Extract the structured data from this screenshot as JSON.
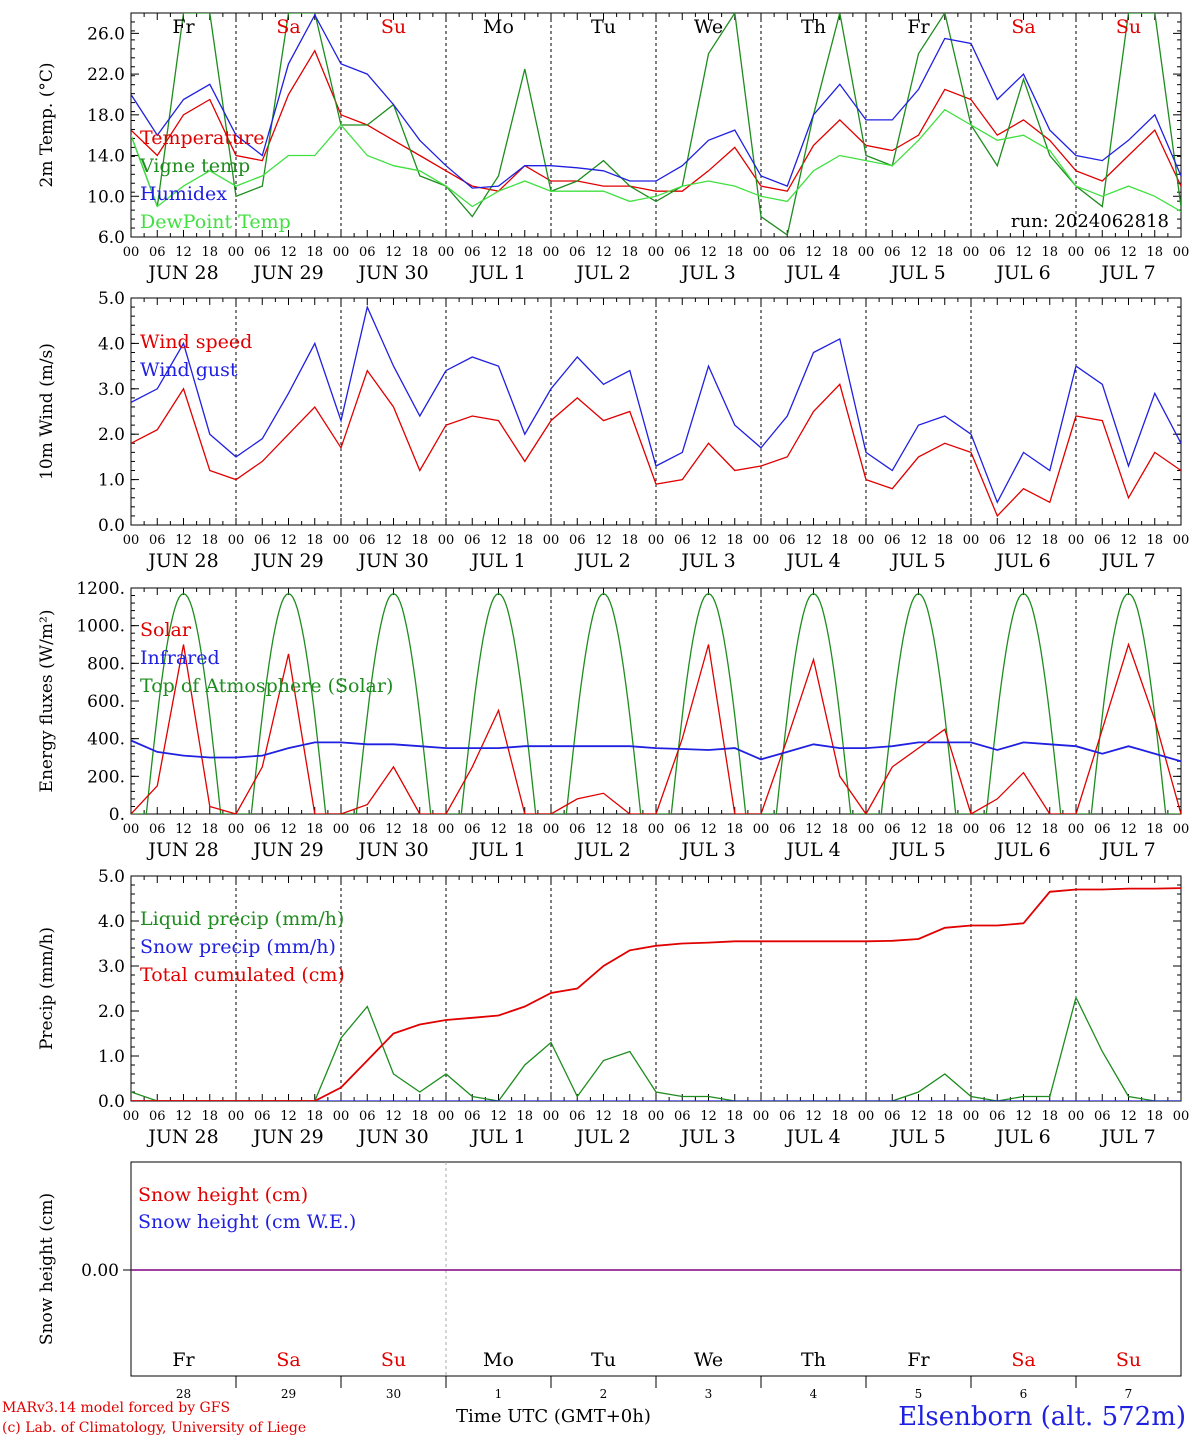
{
  "chart_data": [
    {
      "type": "line",
      "ylabel": "2m Temp. (°C)",
      "ylim": [
        6,
        28
      ],
      "yticks": [
        "6.0",
        "10.0",
        "14.0",
        "18.0",
        "22.0",
        "26.0"
      ],
      "day_names": [
        "Fr",
        "Sa",
        "Su",
        "Mo",
        "Tu",
        "We",
        "Th",
        "Fr",
        "Sa",
        "Su"
      ],
      "day_name_colors": [
        "#000000",
        "#e00000",
        "#e00000",
        "#000000",
        "#000000",
        "#000000",
        "#000000",
        "#000000",
        "#e00000",
        "#e00000"
      ],
      "run_label": "run: 2024062818",
      "x_hours": [
        0,
        6,
        12,
        18,
        24,
        30,
        36,
        42,
        48,
        54,
        60,
        66,
        72,
        78,
        84,
        90,
        96,
        102,
        108,
        114,
        120,
        126,
        132,
        138,
        144,
        150,
        156,
        162,
        168,
        174,
        180,
        186,
        192,
        198,
        204,
        210,
        216,
        222,
        228,
        234,
        240
      ],
      "series": [
        {
          "name": "Temperature",
          "color": "#e00000",
          "values": [
            16.5,
            14,
            18,
            19.5,
            14,
            13.5,
            20,
            24.3,
            18,
            17,
            15.5,
            14,
            12.5,
            11,
            10.5,
            13,
            11.5,
            11.5,
            11,
            11,
            10.5,
            10.5,
            12.5,
            14.8,
            11,
            10.5,
            15,
            17.5,
            15,
            14.5,
            16,
            20.5,
            19.5,
            16,
            17.5,
            15.5,
            12.5,
            11.5,
            14,
            16.5,
            11
          ]
        },
        {
          "name": "Vigne temp",
          "color": "#1e8c1e",
          "values": [
            16,
            9,
            28,
            28,
            10,
            11,
            28,
            28,
            17,
            17,
            19,
            12,
            11,
            8,
            12,
            22.5,
            10.5,
            11.5,
            13.5,
            11,
            9.5,
            11,
            24,
            28,
            8,
            6.2,
            18,
            28,
            14,
            13,
            24,
            28,
            17,
            13,
            21.5,
            14,
            11,
            9,
            28,
            28,
            9
          ]
        },
        {
          "name": "Humidex",
          "color": "#2020e0",
          "values": [
            20,
            16,
            19.5,
            21,
            16,
            14,
            23,
            27.8,
            23,
            22,
            19,
            15.5,
            13,
            10.8,
            11,
            13,
            13,
            12.8,
            12.5,
            11.5,
            11.5,
            13,
            15.5,
            16.5,
            12,
            11,
            18,
            21,
            17.5,
            17.5,
            20.5,
            25.5,
            25,
            19.5,
            22,
            16.5,
            14,
            13.5,
            15.5,
            18,
            12
          ]
        },
        {
          "name": "DewPoint Temp",
          "color": "#40e040",
          "values": [
            16,
            9,
            11,
            12.5,
            11,
            12,
            14,
            14,
            17,
            14,
            13,
            12.5,
            11,
            9,
            10.5,
            11.5,
            10.5,
            10.5,
            10.5,
            9.5,
            10,
            11,
            11.5,
            11,
            10,
            9.5,
            12.5,
            14,
            13.5,
            13,
            15.5,
            18.5,
            17,
            15.5,
            16,
            14.5,
            11,
            10,
            11,
            10,
            8.5
          ]
        }
      ]
    },
    {
      "type": "line",
      "ylabel": "10m Wind (m/s)",
      "ylim": [
        0,
        5
      ],
      "yticks": [
        "0.0",
        "1.0",
        "2.0",
        "3.0",
        "4.0",
        "5.0"
      ],
      "x_hours": [
        0,
        6,
        12,
        18,
        24,
        30,
        36,
        42,
        48,
        54,
        60,
        66,
        72,
        78,
        84,
        90,
        96,
        102,
        108,
        114,
        120,
        126,
        132,
        138,
        144,
        150,
        156,
        162,
        168,
        174,
        180,
        186,
        192,
        198,
        204,
        210,
        216,
        222,
        228,
        234,
        240
      ],
      "series": [
        {
          "name": "Wind speed",
          "color": "#e00000",
          "values": [
            1.8,
            2.1,
            3.0,
            1.2,
            1.0,
            1.4,
            2.0,
            2.6,
            1.7,
            3.4,
            2.6,
            1.2,
            2.2,
            2.4,
            2.3,
            1.4,
            2.3,
            2.8,
            2.3,
            2.5,
            0.9,
            1.0,
            1.8,
            1.2,
            1.3,
            1.5,
            2.5,
            3.1,
            1.0,
            0.8,
            1.5,
            1.8,
            1.6,
            0.2,
            0.8,
            0.5,
            2.4,
            2.3,
            0.6,
            1.6,
            1.2
          ]
        },
        {
          "name": "Wind gust",
          "color": "#2020e0",
          "values": [
            2.7,
            3.0,
            4.0,
            2.0,
            1.5,
            1.9,
            2.9,
            4.0,
            2.3,
            4.8,
            3.5,
            2.4,
            3.4,
            3.7,
            3.5,
            2.0,
            3.0,
            3.7,
            3.1,
            3.4,
            1.3,
            1.6,
            3.5,
            2.2,
            1.7,
            2.4,
            3.8,
            4.1,
            1.6,
            1.2,
            2.2,
            2.4,
            2.0,
            0.5,
            1.6,
            1.2,
            3.5,
            3.1,
            1.3,
            2.9,
            1.8
          ]
        }
      ]
    },
    {
      "type": "line",
      "ylabel": "Energy fluxes (W/m²)",
      "ylim": [
        0,
        1200
      ],
      "yticks": [
        "0.",
        "200.",
        "400.",
        "600.",
        "800.",
        "1000.",
        "1200."
      ],
      "x_hours": [
        0,
        6,
        12,
        18,
        24,
        30,
        36,
        42,
        48,
        54,
        60,
        66,
        72,
        78,
        84,
        90,
        96,
        102,
        108,
        114,
        120,
        126,
        132,
        138,
        144,
        150,
        156,
        162,
        168,
        174,
        180,
        186,
        192,
        198,
        204,
        210,
        216,
        222,
        228,
        234,
        240
      ],
      "series": [
        {
          "name": "Solar",
          "color": "#e00000",
          "values": [
            0,
            150,
            900,
            40,
            0,
            250,
            850,
            0,
            0,
            50,
            250,
            0,
            0,
            250,
            550,
            0,
            0,
            80,
            110,
            0,
            0,
            400,
            900,
            0,
            0,
            400,
            820,
            200,
            0,
            250,
            350,
            450,
            0,
            80,
            220,
            0,
            0,
            450,
            900,
            500,
            0
          ]
        },
        {
          "name": "Infrared",
          "color": "#2020e0",
          "values": [
            390,
            330,
            310,
            300,
            300,
            310,
            350,
            380,
            380,
            370,
            370,
            360,
            350,
            350,
            350,
            360,
            360,
            360,
            360,
            360,
            350,
            345,
            340,
            350,
            290,
            330,
            370,
            350,
            350,
            360,
            380,
            380,
            380,
            340,
            380,
            370,
            360,
            320,
            360,
            320,
            280
          ]
        }
      ],
      "toa_series": {
        "name": "Top of Atmosphere (Solar)",
        "color": "#1e8c1e",
        "peak": 1170
      }
    },
    {
      "type": "line",
      "ylabel": "Precip (mm/h)",
      "ylim": [
        0,
        5
      ],
      "yticks": [
        "0.0",
        "1.0",
        "2.0",
        "3.0",
        "4.0",
        "5.0"
      ],
      "x_hours": [
        0,
        6,
        12,
        18,
        24,
        30,
        36,
        42,
        48,
        54,
        60,
        66,
        72,
        78,
        84,
        90,
        96,
        102,
        108,
        114,
        120,
        126,
        132,
        138,
        144,
        150,
        156,
        162,
        168,
        174,
        180,
        186,
        192,
        198,
        204,
        210,
        216,
        222,
        228,
        234,
        240
      ],
      "series": [
        {
          "name": "Liquid precip (mm/h)",
          "color": "#1e8c1e",
          "values": [
            0.2,
            0,
            0,
            0,
            0,
            0,
            0,
            0,
            1.4,
            2.1,
            0.6,
            0.2,
            0.6,
            0.1,
            0.0,
            0.8,
            1.3,
            0.1,
            0.9,
            1.1,
            0.2,
            0.1,
            0.1,
            0.0,
            0,
            0,
            0,
            0,
            0,
            0,
            0.2,
            0.6,
            0.1,
            0,
            0.1,
            0.1,
            2.3,
            1.1,
            0.1,
            0,
            0
          ]
        },
        {
          "name": "Snow precip (mm/h)",
          "color": "#2020e0",
          "values": [
            0,
            0,
            0,
            0,
            0,
            0,
            0,
            0,
            0,
            0,
            0,
            0,
            0,
            0,
            0,
            0,
            0,
            0,
            0,
            0,
            0,
            0,
            0,
            0,
            0,
            0,
            0,
            0,
            0,
            0,
            0,
            0,
            0,
            0,
            0,
            0,
            0,
            0,
            0,
            0,
            0
          ]
        },
        {
          "name": "Total cumulated (cm)",
          "color": "#e00000",
          "values": [
            0,
            0,
            0,
            0,
            0,
            0,
            0,
            0,
            0.3,
            0.9,
            1.5,
            1.7,
            1.8,
            1.85,
            1.9,
            2.1,
            2.4,
            2.5,
            3.0,
            3.35,
            3.45,
            3.5,
            3.52,
            3.55,
            3.55,
            3.55,
            3.55,
            3.55,
            3.55,
            3.56,
            3.6,
            3.85,
            3.9,
            3.9,
            3.95,
            4.65,
            4.7,
            4.7,
            4.72,
            4.72,
            4.73
          ]
        }
      ]
    },
    {
      "type": "line",
      "ylabel": "Snow height (cm)",
      "ytick": "0.00",
      "series": [
        {
          "name": "Snow height (cm)",
          "color": "#e00000",
          "values": [
            0,
            0
          ]
        },
        {
          "name": "Snow height (cm W.E.)",
          "color": "#2020e0",
          "values": [
            0,
            0
          ]
        }
      ],
      "day_names": [
        "Fr",
        "Sa",
        "Su",
        "Mo",
        "Tu",
        "We",
        "Th",
        "Fr",
        "Sa",
        "Su"
      ],
      "day_name_colors": [
        "#000000",
        "#e00000",
        "#e00000",
        "#000000",
        "#000000",
        "#000000",
        "#000000",
        "#000000",
        "#e00000",
        "#e00000"
      ],
      "day_numbers": [
        "28",
        "29",
        "30",
        "1",
        "2",
        "3",
        "4",
        "5",
        "6",
        "7"
      ]
    }
  ],
  "shared_axis": {
    "hour_ticks": [
      "00",
      "06",
      "12",
      "18"
    ],
    "end_tick": "00",
    "date_labels": [
      "JUN 28",
      "JUN 29",
      "JUN 30",
      "JUL  1",
      "JUL  2",
      "JUL  3",
      "JUL  4",
      "JUL  5",
      "JUL  6",
      "JUL  7"
    ]
  },
  "footer": {
    "credit_line1": "MARv3.14 model forced by GFS",
    "credit_line2": "(c) Lab. of Climatology, University of Liege",
    "x_title": "Time UTC (GMT+0h)",
    "station": "Elsenborn (alt. 572m)"
  }
}
